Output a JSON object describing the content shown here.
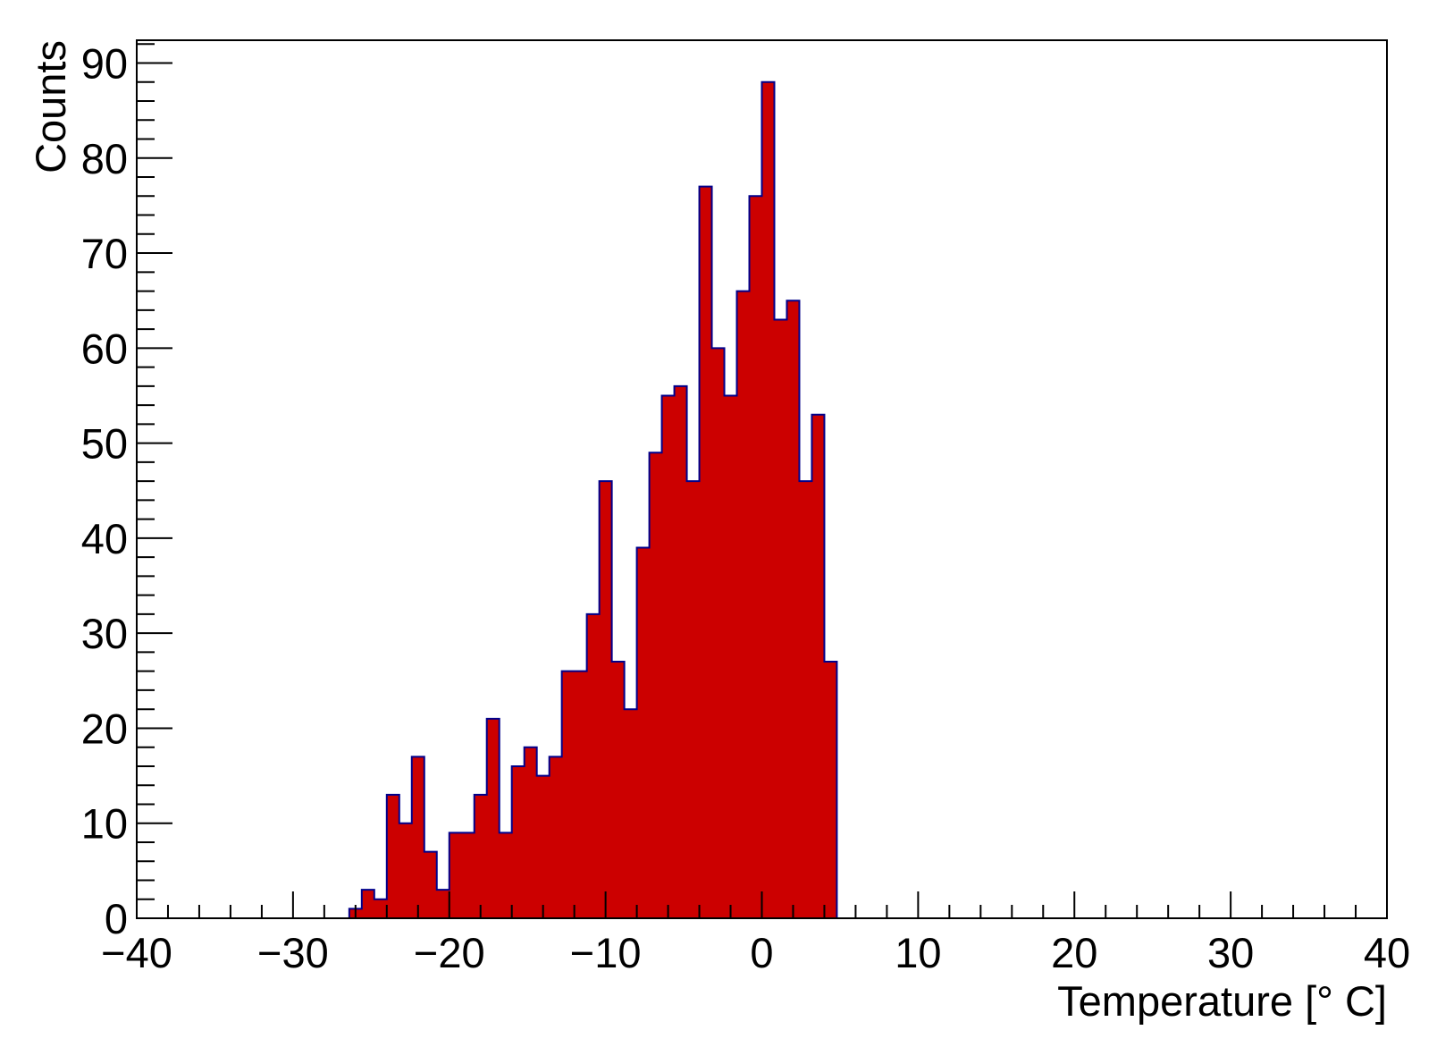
{
  "chart_data": {
    "type": "bar",
    "histogram": true,
    "title": "",
    "xlabel": "Temperature [° C]",
    "ylabel": "Counts",
    "xlim": [
      -40,
      40
    ],
    "ylim": [
      0,
      92.4
    ],
    "x_ticks": [
      -40,
      -30,
      -20,
      -10,
      0,
      10,
      20,
      30,
      40
    ],
    "x_tick_labels": [
      "−40",
      "−30",
      "−20",
      "−10",
      "0",
      "10",
      "20",
      "30",
      "40"
    ],
    "y_ticks": [
      0,
      10,
      20,
      30,
      40,
      50,
      60,
      70,
      80,
      90
    ],
    "y_tick_labels": [
      "0",
      "10",
      "20",
      "30",
      "40",
      "50",
      "60",
      "70",
      "80",
      "90"
    ],
    "bin_width": 0.8,
    "bin_start": -26.4,
    "values": [
      1,
      3,
      2,
      13,
      10,
      17,
      7,
      3,
      9,
      9,
      13,
      21,
      9,
      16,
      18,
      15,
      17,
      26,
      26,
      32,
      46,
      27,
      22,
      39,
      49,
      55,
      56,
      46,
      77,
      60,
      55,
      66,
      76,
      88,
      63,
      65,
      46,
      53,
      27
    ],
    "fill_color": "#cc0000",
    "line_color": "#00008b",
    "grid": false,
    "legend": "none"
  }
}
